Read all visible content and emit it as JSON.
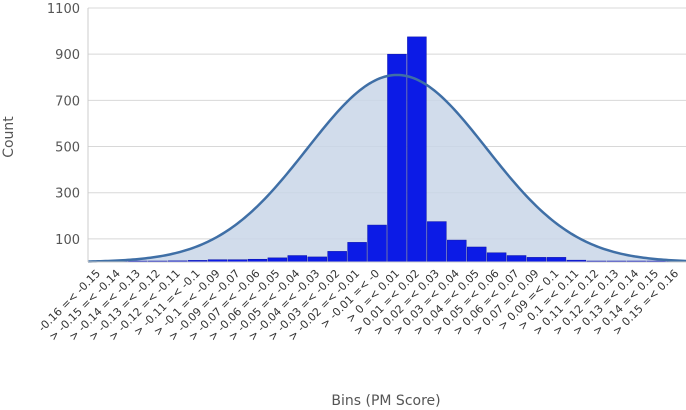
{
  "chart_data": {
    "type": "bar",
    "title": "",
    "xlabel": "Bins (PM Score)",
    "ylabel": "Count",
    "ylim": [
      0,
      1100
    ],
    "y_ticks": [
      100,
      300,
      500,
      700,
      900,
      1100
    ],
    "grid": true,
    "categories": [
      "-0.16 =< -0.15",
      "> -0.15 =< -0.14",
      "> -0.14 =< -0.13",
      "> -0.13 =< -0.12",
      "> -0.12 =< -0.11",
      "> -0.11 =< -0.1",
      "> -0.1 =< -0.09",
      "> -0.09 =< -0.07",
      "> -0.07 =< -0.06",
      "> -0.06 =< -0.05",
      "> -0.05 =< -0.04",
      "> -0.04 =< -0.03",
      "> -0.03 =< -0.02",
      "> -0.02 =< -0.01",
      "> -0.01 =< -0",
      "> 0 =< 0.01",
      "> 0.01 =< 0.02",
      "> 0.02 =< 0.03",
      "> 0.03 =< 0.04",
      "> 0.04 =< 0.05",
      "> 0.05 =< 0.06",
      "> 0.06 =< 0.07",
      "> 0.07 =< 0.09",
      "> 0.09 =< 0.1",
      "> 0.1 =< 0.11",
      "> 0.11 =< 0.12",
      "> 0.12 =< 0.13",
      "> 0.13 =< 0.14",
      "> 0.14 =< 0.15",
      "> 0.15 =< 0.16"
    ],
    "values": [
      2,
      3,
      4,
      4,
      5,
      7,
      10,
      10,
      12,
      18,
      28,
      22,
      46,
      85,
      160,
      900,
      975,
      175,
      95,
      65,
      40,
      28,
      20,
      20,
      8,
      3,
      2,
      2,
      2,
      2
    ],
    "curve": {
      "type": "normal",
      "peak": 810,
      "mean_index": 15,
      "sd_index": 4.5
    },
    "colors": {
      "bar": "#0c1be6",
      "bar_border": "#0a12a8",
      "curve_line": "#3f6fa6",
      "curve_fill": "#c9d6e8",
      "grid": "#d8d8d8"
    }
  }
}
